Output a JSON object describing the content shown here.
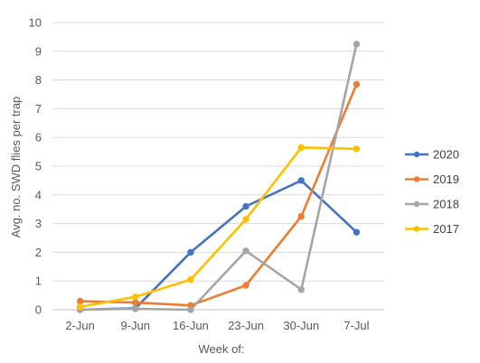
{
  "chart_data": {
    "type": "line",
    "title": "",
    "xlabel": "Week of:",
    "ylabel": "Avg. no. SWD flies per trap",
    "categories": [
      "2-Jun",
      "9-Jun",
      "16-Jun",
      "23-Jun",
      "30-Jun",
      "7-Jul"
    ],
    "ylim": [
      0,
      10
    ],
    "yticks": [
      "0",
      "1",
      "2",
      "3",
      "4",
      "5",
      "6",
      "7",
      "8",
      "9",
      "10"
    ],
    "grid": "horizontal",
    "legend_position": "right",
    "series": [
      {
        "name": "2020",
        "color": "#4472C4",
        "values": [
          0.0,
          0.05,
          2.0,
          3.6,
          4.5,
          2.7
        ]
      },
      {
        "name": "2019",
        "color": "#ED7D31",
        "values": [
          0.3,
          0.25,
          0.15,
          0.85,
          3.25,
          7.85
        ]
      },
      {
        "name": "2018",
        "color": "#A5A5A5",
        "values": [
          0.0,
          0.03,
          0.0,
          2.05,
          0.7,
          9.25
        ]
      },
      {
        "name": "2017",
        "color": "#FFC000",
        "values": [
          0.1,
          0.45,
          1.05,
          3.15,
          5.65,
          5.6
        ]
      }
    ]
  }
}
